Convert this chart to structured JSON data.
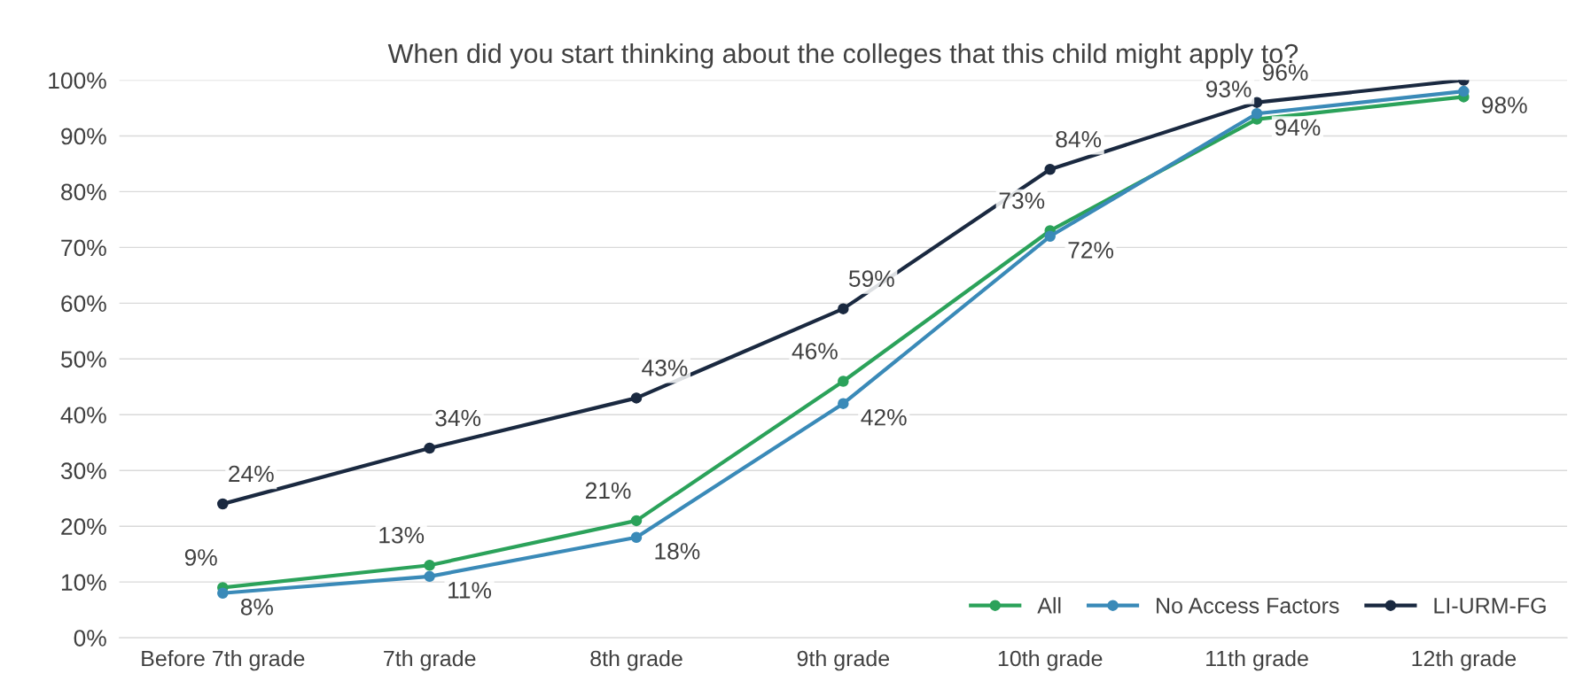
{
  "chart_data": {
    "type": "line",
    "title": "When did you start thinking about the colleges that this child might apply to?",
    "categories": [
      "Before 7th grade",
      "7th grade",
      "8th grade",
      "9th grade",
      "10th grade",
      "11th grade",
      "12th grade"
    ],
    "series": [
      {
        "name": "All",
        "color": "#2ba25a",
        "values": [
          9,
          13,
          21,
          46,
          73,
          93,
          97
        ],
        "value_labels": [
          "9%",
          "13%",
          "21%",
          "46%",
          "73%",
          "93%",
          null
        ]
      },
      {
        "name": "No Access Factors",
        "color": "#3a8ab8",
        "values": [
          8,
          11,
          18,
          42,
          72,
          94,
          98
        ],
        "value_labels": [
          "8%",
          "11%",
          "18%",
          "42%",
          "72%",
          "94%",
          "98%"
        ]
      },
      {
        "name": "LI-URM-FG",
        "color": "#1a2940",
        "values": [
          24,
          34,
          43,
          59,
          84,
          96,
          100
        ],
        "value_labels": [
          "24%",
          "34%",
          "43%",
          "59%",
          "84%",
          "96%",
          null
        ]
      }
    ],
    "ylim": [
      0,
      100
    ],
    "yticks": [
      {
        "value": 0,
        "label": "0%"
      },
      {
        "value": 10,
        "label": "10%"
      },
      {
        "value": 20,
        "label": "20%"
      },
      {
        "value": 30,
        "label": "30%"
      },
      {
        "value": 40,
        "label": "40%"
      },
      {
        "value": 50,
        "label": "50%"
      },
      {
        "value": 60,
        "label": "60%"
      },
      {
        "value": 70,
        "label": "70%"
      },
      {
        "value": 80,
        "label": "80%"
      },
      {
        "value": 90,
        "label": "90%"
      },
      {
        "value": 100,
        "label": "100%"
      }
    ],
    "grid": "y",
    "legend": "bottom right",
    "marker": "circle",
    "line_style": "solid"
  }
}
